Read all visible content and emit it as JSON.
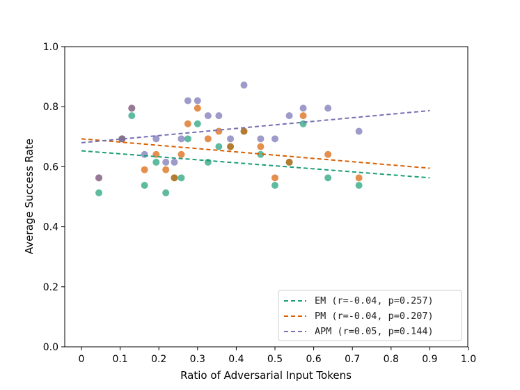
{
  "chart_data": {
    "type": "scatter",
    "title": "",
    "xlabel": "Ratio of Adversarial Input Tokens",
    "ylabel": "Average Success Rate",
    "xlim": [
      -0.045,
      1.0
    ],
    "ylim": [
      0.0,
      1.0
    ],
    "xticks": [
      0,
      0.1,
      0.2,
      0.3,
      0.4,
      0.5,
      0.6,
      0.7,
      0.8,
      0.9,
      1.0
    ],
    "xtick_labels": [
      "0",
      "0.1",
      "0.2",
      "0.3",
      "0.4",
      "0.5",
      "0.6",
      "0.7",
      "0.8",
      "0.9",
      "1.0"
    ],
    "yticks": [
      0.0,
      0.2,
      0.4,
      0.6,
      0.8,
      1.0
    ],
    "ytick_labels": [
      "0.0",
      "0.2",
      "0.4",
      "0.6",
      "0.8",
      "1.0"
    ],
    "grid": false,
    "legend_position": "bottom-right",
    "series": [
      {
        "name": "EM",
        "legend_label": "EM (r=-0.04, p=0.257)",
        "color": "#1b9e77",
        "fit": {
          "x": [
            0,
            0.9
          ],
          "y": [
            0.653,
            0.563
          ]
        },
        "points": [
          [
            0.045,
            0.513
          ],
          [
            0.13,
            0.77
          ],
          [
            0.105,
            0.693
          ],
          [
            0.163,
            0.538
          ],
          [
            0.193,
            0.615
          ],
          [
            0.218,
            0.513
          ],
          [
            0.24,
            0.563
          ],
          [
            0.258,
            0.563
          ],
          [
            0.275,
            0.693
          ],
          [
            0.3,
            0.743
          ],
          [
            0.327,
            0.615
          ],
          [
            0.355,
            0.667
          ],
          [
            0.385,
            0.667
          ],
          [
            0.42,
            0.718
          ],
          [
            0.463,
            0.641
          ],
          [
            0.5,
            0.538
          ],
          [
            0.537,
            0.615
          ],
          [
            0.573,
            0.743
          ],
          [
            0.637,
            0.563
          ],
          [
            0.717,
            0.538
          ]
        ]
      },
      {
        "name": "PM",
        "legend_label": "PM (r=-0.04, p=0.207)",
        "color": "#d95f02",
        "fit": {
          "x": [
            0,
            0.9
          ],
          "y": [
            0.693,
            0.595
          ]
        },
        "points": [
          [
            0.045,
            0.563
          ],
          [
            0.105,
            0.693
          ],
          [
            0.13,
            0.795
          ],
          [
            0.163,
            0.59
          ],
          [
            0.193,
            0.641
          ],
          [
            0.218,
            0.59
          ],
          [
            0.24,
            0.563
          ],
          [
            0.258,
            0.641
          ],
          [
            0.275,
            0.743
          ],
          [
            0.3,
            0.795
          ],
          [
            0.327,
            0.693
          ],
          [
            0.355,
            0.718
          ],
          [
            0.385,
            0.667
          ],
          [
            0.42,
            0.718
          ],
          [
            0.463,
            0.667
          ],
          [
            0.5,
            0.563
          ],
          [
            0.537,
            0.615
          ],
          [
            0.573,
            0.77
          ],
          [
            0.637,
            0.641
          ],
          [
            0.717,
            0.563
          ]
        ]
      },
      {
        "name": "APM",
        "legend_label": "APM (r=0.05, p=0.144)",
        "color": "#7570b3",
        "fit": {
          "x": [
            0,
            0.9
          ],
          "y": [
            0.68,
            0.787
          ]
        },
        "points": [
          [
            0.045,
            0.563
          ],
          [
            0.105,
            0.693
          ],
          [
            0.13,
            0.795
          ],
          [
            0.163,
            0.641
          ],
          [
            0.193,
            0.693
          ],
          [
            0.218,
            0.615
          ],
          [
            0.24,
            0.615
          ],
          [
            0.258,
            0.693
          ],
          [
            0.275,
            0.82
          ],
          [
            0.3,
            0.82
          ],
          [
            0.327,
            0.77
          ],
          [
            0.355,
            0.77
          ],
          [
            0.385,
            0.693
          ],
          [
            0.42,
            0.872
          ],
          [
            0.463,
            0.693
          ],
          [
            0.5,
            0.693
          ],
          [
            0.537,
            0.77
          ],
          [
            0.573,
            0.795
          ],
          [
            0.637,
            0.795
          ],
          [
            0.717,
            0.718
          ]
        ]
      }
    ]
  }
}
